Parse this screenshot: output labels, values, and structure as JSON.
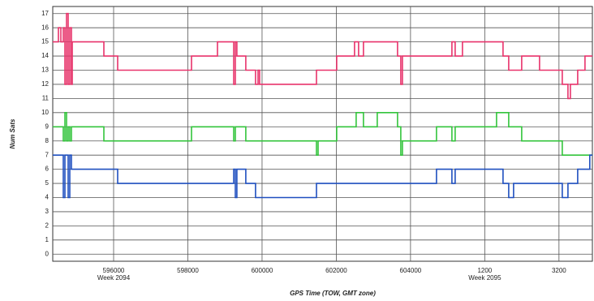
{
  "chart_data": {
    "type": "step-line",
    "x_label": "GPS Time (TOW, GMT zone)",
    "y_label": "Num Sats",
    "xlim": [
      594360,
      608900
    ],
    "ylim": [
      -0.5,
      17.5
    ],
    "xticks": [
      596000,
      598000,
      600000,
      602000,
      604000,
      {
        "value": 606000,
        "label": "1200"
      },
      {
        "value": 608000,
        "label": "3200"
      }
    ],
    "x_annotations": [
      {
        "value": 596000,
        "label": "Week 2094"
      },
      {
        "value": 606000,
        "label": "Week 2095"
      }
    ],
    "yticks": [
      0,
      1,
      2,
      3,
      4,
      5,
      6,
      7,
      8,
      9,
      10,
      11,
      12,
      13,
      14,
      15,
      16,
      17
    ],
    "grid": true,
    "series": [
      {
        "color": "#e8336b",
        "x": [
          594360,
          594513,
          594579,
          594644,
          594688,
          594732,
          594775,
          594819,
          594863,
          594885,
          595737,
          596109,
          598098,
          598798,
          599235,
          599279,
          599322,
          599562,
          599825,
          599891,
          599934,
          601465,
          602011,
          602492,
          602601,
          602733,
          603651,
          603738,
          603782,
          605115,
          605203,
          605400,
          606492,
          606645,
          606995,
          607476,
          608088,
          608241,
          608307,
          608504,
          608700
        ],
        "values": [
          15,
          16,
          15,
          16,
          12,
          17,
          12,
          16,
          12,
          15,
          14,
          13,
          14,
          15,
          12,
          15,
          14,
          13,
          12,
          13,
          12,
          13,
          14,
          15,
          14,
          15,
          14,
          12,
          14,
          15,
          14,
          15,
          14,
          13,
          14,
          13,
          12,
          11,
          12,
          13,
          14
        ]
      },
      {
        "color": "#33c43c",
        "x": [
          594360,
          594644,
          594688,
          594732,
          594775,
          594819,
          594863,
          595737,
          598098,
          599235,
          599279,
          599562,
          601465,
          601509,
          602011,
          602536,
          602733,
          603104,
          603651,
          603738,
          603782,
          604700,
          605115,
          605203,
          606317,
          606645,
          606995,
          608088
        ],
        "values": [
          9,
          8,
          10,
          8,
          9,
          8,
          9,
          8,
          9,
          8,
          9,
          8,
          7,
          8,
          9,
          10,
          9,
          10,
          9,
          7,
          8,
          9,
          8,
          9,
          10,
          9,
          8,
          7
        ]
      },
      {
        "color": "#1f4fbf",
        "x": [
          594360,
          594644,
          594688,
          594775,
          594819,
          594863,
          596109,
          599235,
          599279,
          599322,
          599562,
          599825,
          601465,
          604700,
          605115,
          605203,
          606492,
          606645,
          606776,
          608088,
          608241,
          608504,
          608830
        ],
        "values": [
          7,
          4,
          7,
          4,
          7,
          6,
          5,
          6,
          4,
          6,
          5,
          4,
          5,
          6,
          5,
          6,
          5,
          4,
          5,
          4,
          5,
          6,
          7
        ]
      }
    ]
  }
}
